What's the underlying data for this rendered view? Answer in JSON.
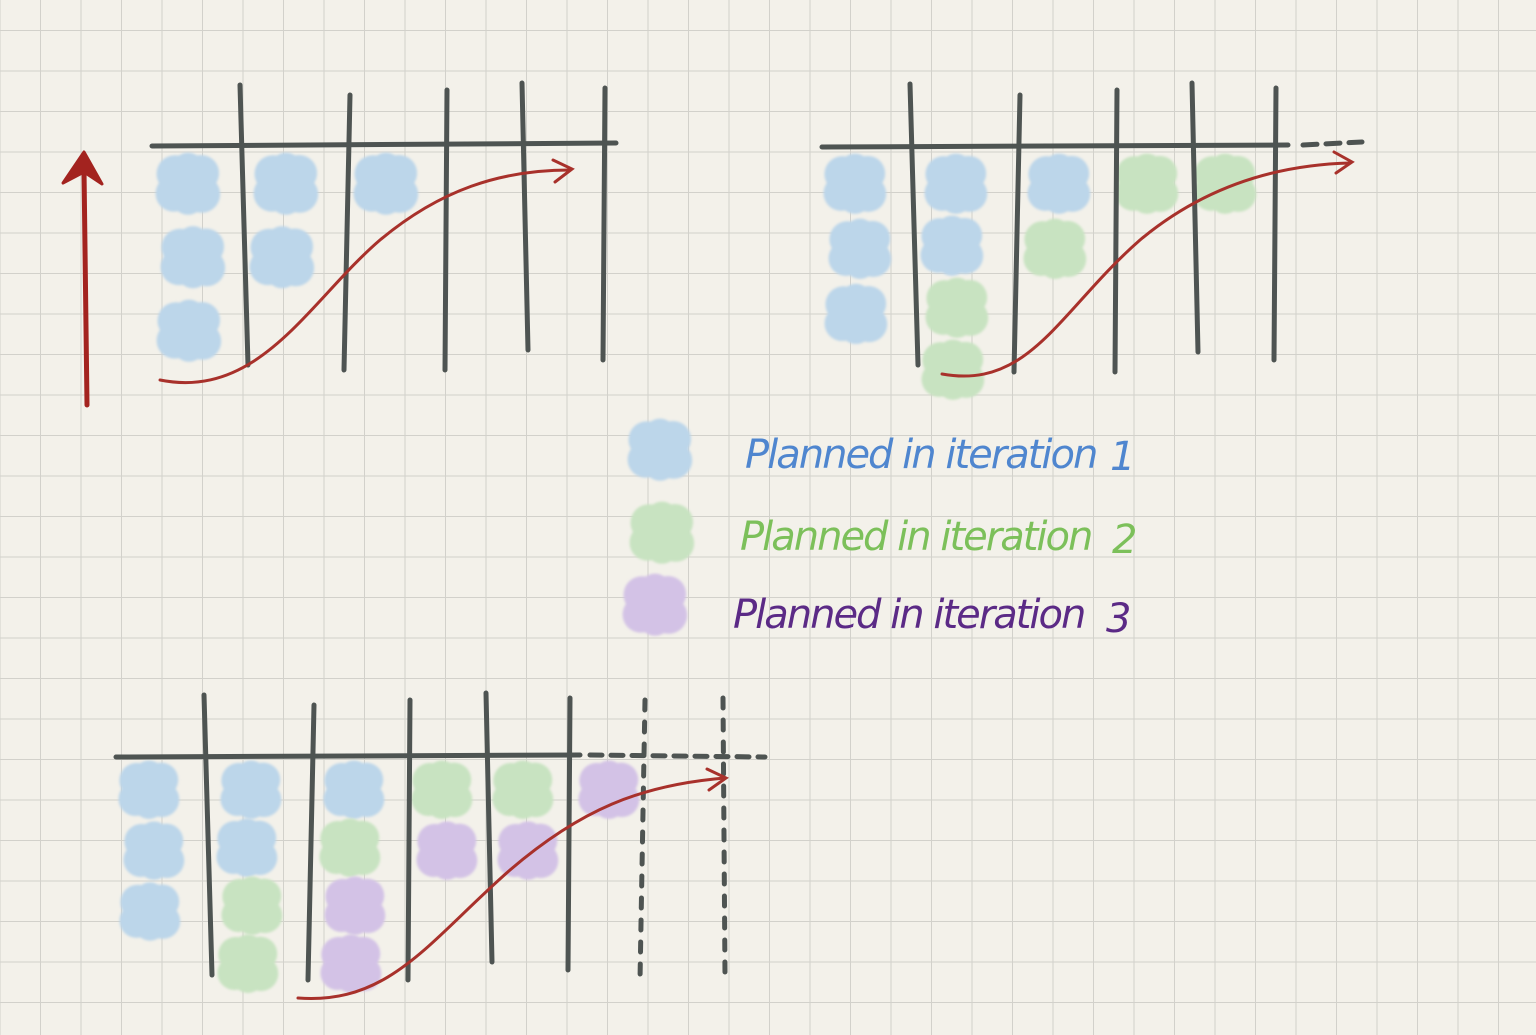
{
  "legend": [
    {
      "label": "Planned in iteration",
      "number": "1",
      "color": "#4f86cf",
      "fill": "#bcd6ea"
    },
    {
      "label": "Planned in iteration",
      "number": "2",
      "color": "#7cc05a",
      "fill": "#c8e3c1"
    },
    {
      "label": "Planned in iteration",
      "number": "3",
      "color": "#5b2a86",
      "fill": "#d3c2e6"
    }
  ],
  "colors": {
    "board_line": "#4e5452",
    "trend_arrow": "#a8312b",
    "vertical_arrow": "#a3231f"
  },
  "boards": [
    {
      "id": "board-1",
      "stickies_per_column": [
        [
          "1",
          "1",
          "1"
        ],
        [
          "1",
          "1"
        ],
        [
          "1"
        ]
      ]
    },
    {
      "id": "board-2",
      "stickies_per_column": [
        [
          "1",
          "1",
          "1"
        ],
        [
          "1",
          "1",
          "2",
          "2"
        ],
        [
          "1",
          "2"
        ],
        [
          "2"
        ],
        [
          "2"
        ]
      ]
    },
    {
      "id": "board-3",
      "stickies_per_column": [
        [
          "1",
          "1",
          "1"
        ],
        [
          "1",
          "1",
          "2",
          "2"
        ],
        [
          "1",
          "2",
          "3",
          "3"
        ],
        [
          "2",
          "3"
        ],
        [
          "2",
          "3"
        ],
        [
          "3"
        ]
      ]
    }
  ]
}
